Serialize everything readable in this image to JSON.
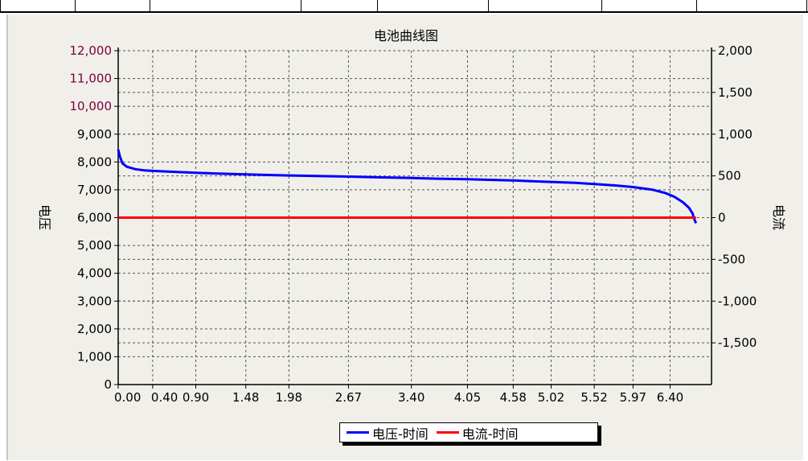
{
  "chart_data": {
    "type": "line",
    "title": "电池曲线图",
    "ylabel_left": "电压",
    "ylabel_right": "电流",
    "x_ticks": [
      "0.00",
      "0.40",
      "0.90",
      "1.48",
      "1.98",
      "2.67",
      "3.40",
      "4.05",
      "4.58",
      "5.02",
      "5.52",
      "5.97",
      "6.40"
    ],
    "x_tick_values": [
      0.0,
      0.4,
      0.9,
      1.48,
      1.98,
      2.67,
      3.4,
      4.05,
      4.58,
      5.02,
      5.52,
      5.97,
      6.4
    ],
    "xlim": [
      0,
      6.88
    ],
    "y_left": {
      "ylim": [
        0,
        12000
      ],
      "ticks": [
        "0",
        "1,000",
        "2,000",
        "3,000",
        "4,000",
        "5,000",
        "6,000",
        "7,000",
        "8,000",
        "9,000",
        "10,000",
        "11,000",
        "12,000"
      ],
      "tick_values": [
        0,
        1000,
        2000,
        3000,
        4000,
        5000,
        6000,
        7000,
        8000,
        9000,
        10000,
        11000,
        12000
      ],
      "tick_colors": [
        "#000000",
        "#000000",
        "#000000",
        "#000000",
        "#000000",
        "#000000",
        "#000000",
        "#000000",
        "#000000",
        "#000000",
        "#800040",
        "#800040",
        "#800040"
      ]
    },
    "y_right": {
      "ylim": [
        -2000,
        2000
      ],
      "ticks": [
        "-1,500",
        "-1,000",
        "-500",
        "0",
        "500",
        "1,000",
        "1,500",
        "2,000"
      ],
      "tick_values": [
        -1500,
        -1000,
        -500,
        0,
        500,
        1000,
        1500,
        2000
      ]
    },
    "grid": true,
    "legend_position": "bottom-center",
    "series": [
      {
        "name": "电压-时间",
        "axis": "left",
        "color": "#0000ff",
        "x": [
          0.0,
          0.02,
          0.05,
          0.1,
          0.2,
          0.3,
          0.4,
          0.6,
          0.9,
          1.2,
          1.48,
          1.7,
          1.98,
          2.3,
          2.67,
          3.0,
          3.4,
          3.7,
          4.05,
          4.3,
          4.58,
          4.8,
          5.02,
          5.3,
          5.52,
          5.75,
          5.97,
          6.2,
          6.35,
          6.45,
          6.55,
          6.62,
          6.66,
          6.68,
          6.7
        ],
        "y": [
          8450,
          8200,
          7950,
          7830,
          7740,
          7700,
          7680,
          7650,
          7610,
          7580,
          7555,
          7535,
          7515,
          7495,
          7475,
          7450,
          7425,
          7400,
          7380,
          7360,
          7335,
          7310,
          7285,
          7250,
          7210,
          7160,
          7100,
          7000,
          6880,
          6750,
          6550,
          6350,
          6150,
          5950,
          5800
        ]
      },
      {
        "name": "电流-时间",
        "axis": "right",
        "color": "#ff0000",
        "x": [
          0.0,
          6.7
        ],
        "y": [
          0,
          0
        ]
      }
    ]
  }
}
